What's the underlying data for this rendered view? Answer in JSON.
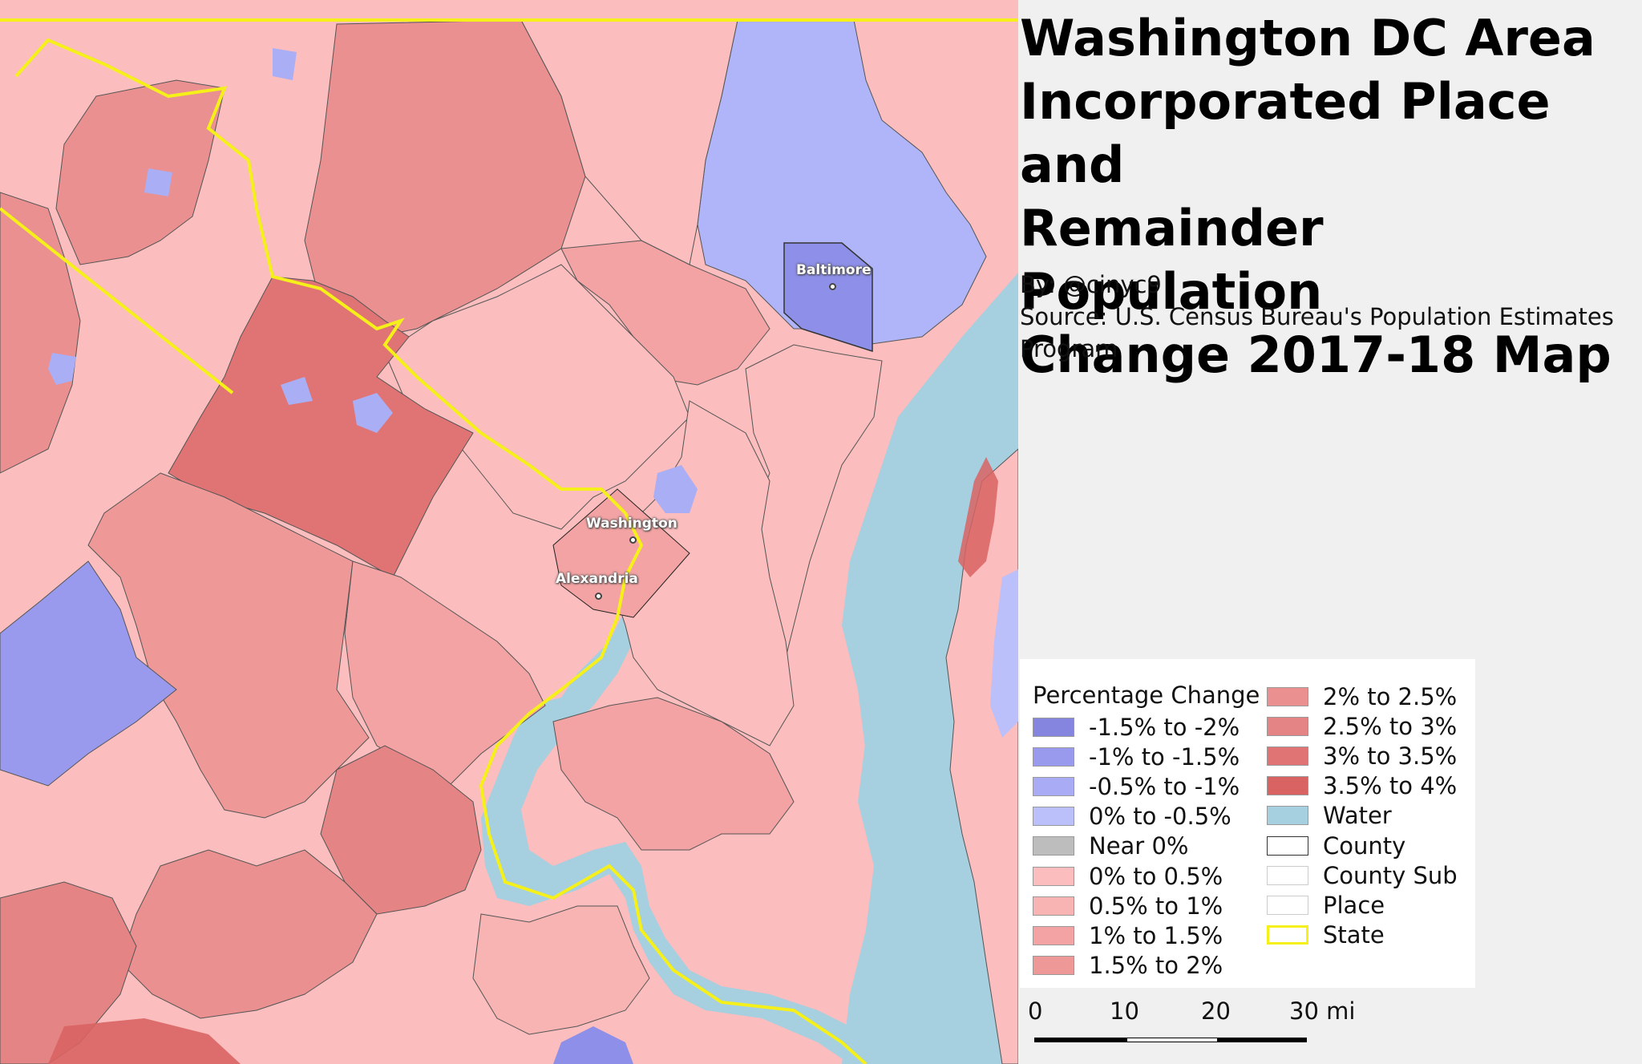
{
  "title_lines": [
    "Washington DC Area",
    "Incorporated Place and",
    "Remainder Population",
    "Change 2017-18 Map"
  ],
  "byline": "By: @cinyc9",
  "source_line1": "Source: U.S. Census Bureau's Population Estimates",
  "source_line2": "Program",
  "cities": {
    "baltimore": "Baltimore",
    "washington": "Washington",
    "alexandria": "Alexandria"
  },
  "legend": {
    "title": "Percentage Change",
    "left": [
      {
        "label": "-1.5% to -2%",
        "color": "#8585e0"
      },
      {
        "label": "-1% to -1.5%",
        "color": "#9999ee"
      },
      {
        "label": "-0.5% to -1%",
        "color": "#a9acf5"
      },
      {
        "label": "0% to -0.5%",
        "color": "#bcc0fa"
      },
      {
        "label": "Near 0%",
        "color": "#bdbdbd"
      },
      {
        "label": "0% to 0.5%",
        "color": "#fbbdbd"
      },
      {
        "label": "0.5% to 1%",
        "color": "#f8b3b3"
      },
      {
        "label": "1% to 1.5%",
        "color": "#f3a3a3"
      },
      {
        "label": "1.5% to 2%",
        "color": "#ee9898"
      }
    ],
    "right": [
      {
        "label": "2% to 2.5%",
        "color": "#ea9090"
      },
      {
        "label": "2.5% to 3%",
        "color": "#e58484"
      },
      {
        "label": "3% to 3.5%",
        "color": "#e07474"
      },
      {
        "label": "3.5% to 4%",
        "color": "#d96363"
      },
      {
        "label": "Water",
        "color": "#a6cfe0"
      },
      {
        "label": "County",
        "color": "#ffffff"
      },
      {
        "label": "County Sub",
        "color": "#ffffff"
      },
      {
        "label": "Place",
        "color": "#ffffff"
      },
      {
        "label": "State",
        "color": "#ffffff"
      }
    ]
  },
  "scale": {
    "labels": [
      "0",
      "10",
      "20",
      "30 mi"
    ]
  }
}
